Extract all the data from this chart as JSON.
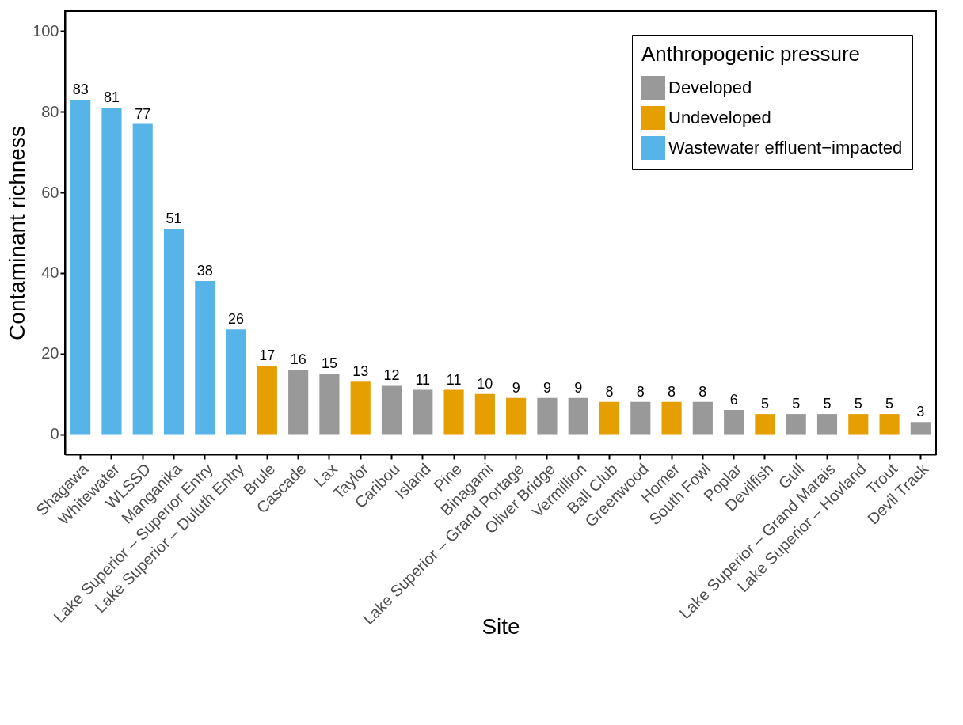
{
  "chart_data": {
    "type": "bar",
    "xlabel": "Site",
    "ylabel": "Contaminant richness",
    "legend_title": "Anthropogenic pressure",
    "legend": "top right",
    "grid": false,
    "data_labels": true,
    "ylim": [
      -5,
      105
    ],
    "yticks": [
      0,
      20,
      40,
      60,
      80,
      100
    ],
    "categories": [
      "Shagawa",
      "Whitewater",
      "WLSSD",
      "Manganika",
      "Lake Superior – Superior Entry",
      "Lake Superior – Duluth Entry",
      "Brule",
      "Cascade",
      "Lax",
      "Taylor",
      "Caribou",
      "Island",
      "Pine",
      "Binagami",
      "Lake Superior – Grand Portage",
      "Oliver Bridge",
      "Vermillion",
      "Ball Club",
      "Greenwood",
      "Homer",
      "South Fowl",
      "Poplar",
      "Devilfish",
      "Gull",
      "Lake Superior – Grand Marais",
      "Lake Superior – Hovland",
      "Trout",
      "Devil Track"
    ],
    "series": [
      {
        "name": "Developed",
        "color": "#999999",
        "values": [
          null,
          null,
          null,
          null,
          null,
          null,
          null,
          16,
          15,
          null,
          12,
          11,
          null,
          null,
          null,
          9,
          9,
          null,
          8,
          null,
          8,
          6,
          null,
          5,
          5,
          null,
          null,
          3
        ]
      },
      {
        "name": "Undeveloped",
        "color": "#e69f00",
        "values": [
          null,
          null,
          null,
          null,
          null,
          null,
          17,
          null,
          null,
          13,
          null,
          null,
          11,
          10,
          9,
          null,
          null,
          8,
          null,
          8,
          null,
          null,
          5,
          null,
          null,
          5,
          5,
          null
        ]
      },
      {
        "name": "Wastewater effluent−impacted",
        "color": "#56b4e9",
        "values": [
          83,
          81,
          77,
          51,
          38,
          26,
          null,
          null,
          null,
          null,
          null,
          null,
          null,
          null,
          null,
          null,
          null,
          null,
          null,
          null,
          null,
          null,
          null,
          null,
          null,
          null,
          null,
          null
        ]
      }
    ]
  }
}
